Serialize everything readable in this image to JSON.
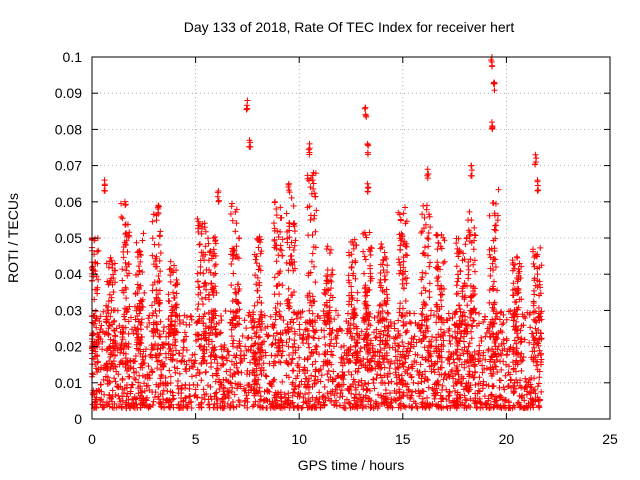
{
  "chart_data": {
    "type": "scatter",
    "title": "Day 133 of 2018, Rate Of TEC Index for receiver hert",
    "xlabel": "GPS time / hours",
    "ylabel": "ROTI / TECUs",
    "xlim": [
      0,
      25
    ],
    "ylim": [
      0,
      0.1
    ],
    "xticks": [
      "0",
      "5",
      "10",
      "15",
      "20",
      "25"
    ],
    "yticks": [
      "0",
      "0.01",
      "0.02",
      "0.03",
      "0.04",
      "0.05",
      "0.06",
      "0.07",
      "0.08",
      "0.09",
      "0.1"
    ],
    "grid": true,
    "marker": "plus",
    "color": "#ff0000",
    "data_range_x": [
      0,
      21.7
    ],
    "typical_y_range": [
      0.003,
      0.03
    ],
    "notable_points": [
      {
        "x": 0.6,
        "y": 0.066
      },
      {
        "x": 3.2,
        "y": 0.059
      },
      {
        "x": 6.1,
        "y": 0.063
      },
      {
        "x": 7.5,
        "y": 0.088
      },
      {
        "x": 7.6,
        "y": 0.077
      },
      {
        "x": 9.5,
        "y": 0.065
      },
      {
        "x": 10.5,
        "y": 0.076
      },
      {
        "x": 13.2,
        "y": 0.086
      },
      {
        "x": 13.3,
        "y": 0.076
      },
      {
        "x": 13.3,
        "y": 0.065
      },
      {
        "x": 16.2,
        "y": 0.069
      },
      {
        "x": 18.3,
        "y": 0.07
      },
      {
        "x": 19.3,
        "y": 0.1
      },
      {
        "x": 19.4,
        "y": 0.093
      },
      {
        "x": 19.3,
        "y": 0.082
      },
      {
        "x": 21.4,
        "y": 0.073
      },
      {
        "x": 21.5,
        "y": 0.066
      }
    ],
    "bursts": [
      {
        "x": 0.1,
        "peak": 0.05
      },
      {
        "x": 0.9,
        "peak": 0.045
      },
      {
        "x": 1.6,
        "peak": 0.061
      },
      {
        "x": 2.3,
        "peak": 0.052
      },
      {
        "x": 3.1,
        "peak": 0.057
      },
      {
        "x": 3.9,
        "peak": 0.044
      },
      {
        "x": 5.3,
        "peak": 0.056
      },
      {
        "x": 5.8,
        "peak": 0.051
      },
      {
        "x": 6.9,
        "peak": 0.06
      },
      {
        "x": 8.0,
        "peak": 0.051
      },
      {
        "x": 9.0,
        "peak": 0.06
      },
      {
        "x": 9.6,
        "peak": 0.063
      },
      {
        "x": 10.6,
        "peak": 0.07
      },
      {
        "x": 11.4,
        "peak": 0.048
      },
      {
        "x": 12.6,
        "peak": 0.05
      },
      {
        "x": 13.3,
        "peak": 0.052
      },
      {
        "x": 14.1,
        "peak": 0.05
      },
      {
        "x": 15.0,
        "peak": 0.061
      },
      {
        "x": 16.1,
        "peak": 0.06
      },
      {
        "x": 16.8,
        "peak": 0.051
      },
      {
        "x": 17.8,
        "peak": 0.05
      },
      {
        "x": 18.3,
        "peak": 0.058
      },
      {
        "x": 19.4,
        "peak": 0.064
      },
      {
        "x": 20.5,
        "peak": 0.045
      },
      {
        "x": 21.5,
        "peak": 0.048
      }
    ]
  }
}
